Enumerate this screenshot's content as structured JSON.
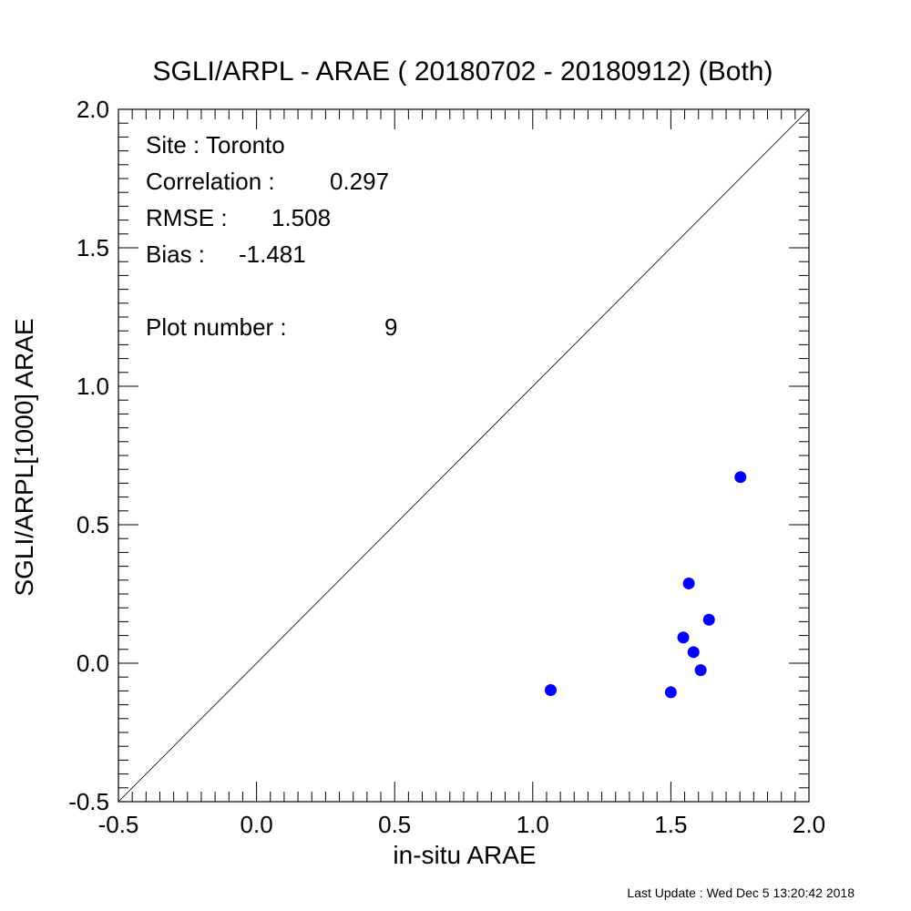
{
  "chart_data": {
    "type": "scatter",
    "title": "SGLI/ARPL - ARAE ( 20180702 - 20180912) (Both)",
    "xlabel": "in-situ ARAE",
    "ylabel": "SGLI/ARPL[1000]    ARAE",
    "xlim": [
      -0.5,
      2.0
    ],
    "ylim": [
      -0.5,
      2.0
    ],
    "x_ticks": [
      "-0.5",
      "0.0",
      "0.5",
      "1.0",
      "1.5",
      "2.0"
    ],
    "y_ticks": [
      "-0.5",
      "0.0",
      "0.5",
      "1.0",
      "1.5",
      "2.0"
    ],
    "grid": false,
    "reference_line": "1:1",
    "marker_color": "#0000ff",
    "points": [
      {
        "x": 1.065,
        "y": -0.097
      },
      {
        "x": 1.5,
        "y": -0.105
      },
      {
        "x": 1.545,
        "y": 0.093
      },
      {
        "x": 1.565,
        "y": 0.288
      },
      {
        "x": 1.582,
        "y": 0.04
      },
      {
        "x": 1.608,
        "y": -0.025
      },
      {
        "x": 1.638,
        "y": 0.157
      },
      {
        "x": 1.752,
        "y": 0.672
      }
    ],
    "stats": {
      "site": "Site : Toronto",
      "correlation_label": "Correlation :",
      "correlation_value": "0.297",
      "rmse_label": "RMSE :",
      "rmse_value": "1.508",
      "bias_label": "Bias :",
      "bias_value": "-1.481",
      "plot_number_label": "Plot number :",
      "plot_number_value": "9"
    }
  },
  "footer": {
    "last_update": "Last Update : Wed Dec  5 13:20:42 2018"
  }
}
